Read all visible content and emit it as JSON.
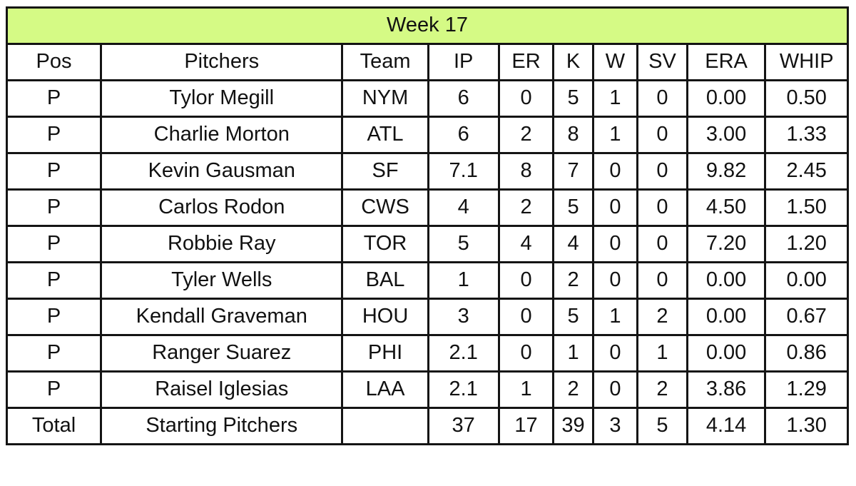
{
  "title": "Week 17",
  "colors": {
    "title_bg": "#d5fa85",
    "border": "#141414",
    "cell_bg": "#ffffff",
    "text": "#111111"
  },
  "columns": [
    "Pos",
    "Pitchers",
    "Team",
    "IP",
    "ER",
    "K",
    "W",
    "SV",
    "ERA",
    "WHIP"
  ],
  "rows": [
    {
      "pos": "P",
      "pitcher": "Tylor Megill",
      "team": "NYM",
      "ip": "6",
      "er": "0",
      "k": "5",
      "w": "1",
      "sv": "0",
      "era": "0.00",
      "whip": "0.50"
    },
    {
      "pos": "P",
      "pitcher": "Charlie Morton",
      "team": "ATL",
      "ip": "6",
      "er": "2",
      "k": "8",
      "w": "1",
      "sv": "0",
      "era": "3.00",
      "whip": "1.33"
    },
    {
      "pos": "P",
      "pitcher": "Kevin Gausman",
      "team": "SF",
      "ip": "7.1",
      "er": "8",
      "k": "7",
      "w": "0",
      "sv": "0",
      "era": "9.82",
      "whip": "2.45"
    },
    {
      "pos": "P",
      "pitcher": "Carlos Rodon",
      "team": "CWS",
      "ip": "4",
      "er": "2",
      "k": "5",
      "w": "0",
      "sv": "0",
      "era": "4.50",
      "whip": "1.50"
    },
    {
      "pos": "P",
      "pitcher": "Robbie Ray",
      "team": "TOR",
      "ip": "5",
      "er": "4",
      "k": "4",
      "w": "0",
      "sv": "0",
      "era": "7.20",
      "whip": "1.20"
    },
    {
      "pos": "P",
      "pitcher": "Tyler Wells",
      "team": "BAL",
      "ip": "1",
      "er": "0",
      "k": "2",
      "w": "0",
      "sv": "0",
      "era": "0.00",
      "whip": "0.00"
    },
    {
      "pos": "P",
      "pitcher": "Kendall Graveman",
      "team": "HOU",
      "ip": "3",
      "er": "0",
      "k": "5",
      "w": "1",
      "sv": "2",
      "era": "0.00",
      "whip": "0.67"
    },
    {
      "pos": "P",
      "pitcher": "Ranger Suarez",
      "team": "PHI",
      "ip": "2.1",
      "er": "0",
      "k": "1",
      "w": "0",
      "sv": "1",
      "era": "0.00",
      "whip": "0.86"
    },
    {
      "pos": "P",
      "pitcher": "Raisel Iglesias",
      "team": "LAA",
      "ip": "2.1",
      "er": "1",
      "k": "2",
      "w": "0",
      "sv": "2",
      "era": "3.86",
      "whip": "1.29"
    }
  ],
  "total": {
    "pos": "Total",
    "pitcher": "Starting Pitchers",
    "team": "",
    "ip": "37",
    "er": "17",
    "k": "39",
    "w": "3",
    "sv": "5",
    "era": "4.14",
    "whip": "1.30"
  }
}
